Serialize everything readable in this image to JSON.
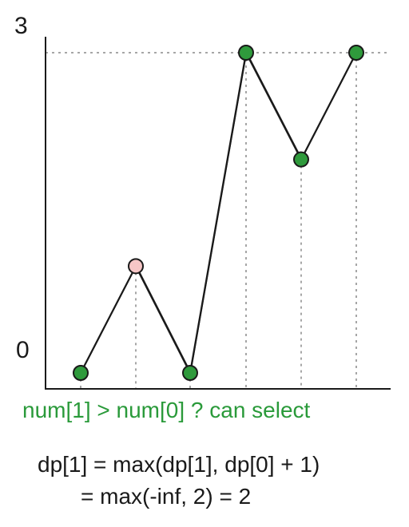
{
  "axis": {
    "y_top_label": "3",
    "y_bottom_label": "0"
  },
  "points": [
    {
      "index": 0,
      "value": 0,
      "state": "selected"
    },
    {
      "index": 1,
      "value": 1,
      "state": "current"
    },
    {
      "index": 2,
      "value": 0,
      "state": "selected"
    },
    {
      "index": 3,
      "value": 3,
      "state": "selected"
    },
    {
      "index": 4,
      "value": 2,
      "state": "selected"
    },
    {
      "index": 5,
      "value": 3,
      "state": "selected"
    }
  ],
  "colors": {
    "selected": "#2f9a3c",
    "current": "#f6c6c6",
    "caption": "#2a9a3a",
    "stroke": "#1a1a1a",
    "guide": "#888888"
  },
  "caption": "num[1] > num[0] ? can select",
  "equation": {
    "line1": "dp[1] = max(dp[1], dp[0] + 1)",
    "line2": "= max(-inf, 2) = 2"
  }
}
